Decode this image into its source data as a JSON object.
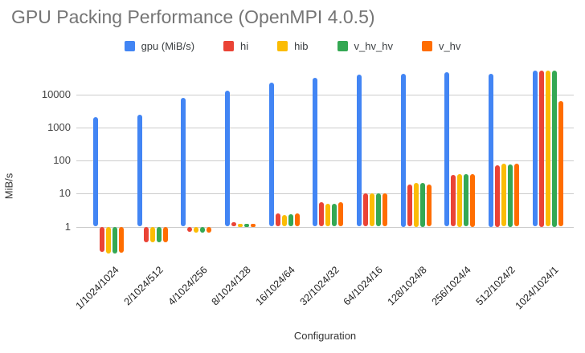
{
  "chart_data": {
    "type": "bar",
    "title": "GPU Packing Performance (OpenMPI 4.0.5)",
    "xlabel": "Configuration",
    "ylabel": "MiB/s",
    "y_scale": "log",
    "y_ticks": [
      1,
      10,
      100,
      1000,
      10000
    ],
    "ylim": [
      0.1,
      60000
    ],
    "grid": true,
    "legend_position": "top",
    "categories": [
      "1/1024/1024",
      "2/1024/512",
      "4/1024/256",
      "8/1024/128",
      "16/1024/64",
      "32/1024/32",
      "64/1024/16",
      "128/1024/8",
      "256/1024/4",
      "512/1024/2",
      "1024/1024/1"
    ],
    "series": [
      {
        "name": "gpu (MiB/s)",
        "color": "#4285F4",
        "values": [
          2100,
          2400,
          7900,
          12800,
          22500,
          31500,
          39000,
          42000,
          46000,
          42000,
          52000
        ]
      },
      {
        "name": "hi",
        "color": "#EA4335",
        "values": [
          0.17,
          0.33,
          0.68,
          1.35,
          2.5,
          5.4,
          10,
          19,
          37,
          72,
          54000
        ]
      },
      {
        "name": "hib",
        "color": "#FBBC04",
        "values": [
          0.15,
          0.33,
          0.65,
          1.25,
          2.3,
          4.8,
          10,
          21,
          40,
          80,
          52000
        ]
      },
      {
        "name": "v_hv_hv",
        "color": "#34A853",
        "values": [
          0.15,
          0.33,
          0.65,
          1.25,
          2.4,
          5.0,
          10,
          21,
          39,
          76,
          54000
        ]
      },
      {
        "name": "v_hv",
        "color": "#FF6D00",
        "values": [
          0.16,
          0.33,
          0.65,
          1.25,
          2.5,
          5.4,
          10,
          19,
          40,
          80,
          6400
        ]
      }
    ],
    "title_color": "#757575"
  }
}
